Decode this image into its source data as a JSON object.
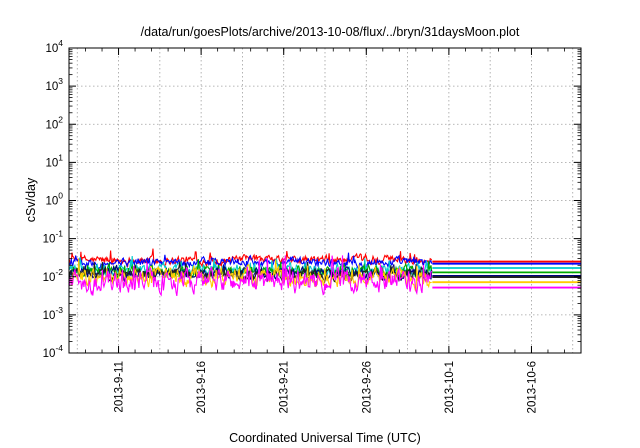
{
  "chart_data": {
    "type": "line",
    "title": "/data/run/goesPlots/archive/2013-10-08/flux/../bryn/31daysMoon.plot",
    "xlabel": "Coordinated Universal Time (UTC)",
    "ylabel": "cSv/day",
    "yscale": "log",
    "ylim_exponents": [
      -4,
      4
    ],
    "ylim": [
      0.0001,
      10000
    ],
    "xlim": [
      "2013-09-08",
      "2013-10-09"
    ],
    "grid": true,
    "y_ticks": [
      {
        "base": "10",
        "exp": "-4"
      },
      {
        "base": "10",
        "exp": "-3"
      },
      {
        "base": "10",
        "exp": "-2"
      },
      {
        "base": "10",
        "exp": "-1"
      },
      {
        "base": "10",
        "exp": "0"
      },
      {
        "base": "10",
        "exp": "1"
      },
      {
        "base": "10",
        "exp": "2"
      },
      {
        "base": "10",
        "exp": "3"
      },
      {
        "base": "10",
        "exp": "4"
      }
    ],
    "x_ticks": [
      {
        "date": "2013-09-11",
        "label": "2013-9-11"
      },
      {
        "date": "2013-09-16",
        "label": "2013-9-16"
      },
      {
        "date": "2013-09-21",
        "label": "2013-9-21"
      },
      {
        "date": "2013-09-26",
        "label": "2013-9-26"
      },
      {
        "date": "2013-10-01",
        "label": "2013-10-1"
      },
      {
        "date": "2013-10-06",
        "label": "2013-10-6"
      }
    ],
    "data_end": "2013-09-30",
    "series": [
      {
        "color": "#ff0000",
        "median": 0.027,
        "spread": 0.08,
        "final_value": 0.025
      },
      {
        "color": "#0000ff",
        "median": 0.024,
        "spread": 0.08,
        "final_value": 0.022
      },
      {
        "color": "#00cccc",
        "median": 0.016,
        "spread": 0.1,
        "final_value": 0.017
      },
      {
        "color": "#00aa00",
        "median": 0.014,
        "spread": 0.1,
        "final_value": 0.013
      },
      {
        "color": "#000080",
        "median": 0.012,
        "spread": 0.1,
        "final_value": 0.0105
      },
      {
        "color": "#202020",
        "median": 0.0115,
        "spread": 0.1,
        "final_value": 0.0098
      },
      {
        "color": "#ffcc00",
        "median": 0.0095,
        "spread": 0.16,
        "final_value": 0.0072
      },
      {
        "color": "#ff00ff",
        "median": 0.0075,
        "spread": 0.2,
        "final_value": 0.0052
      }
    ]
  }
}
